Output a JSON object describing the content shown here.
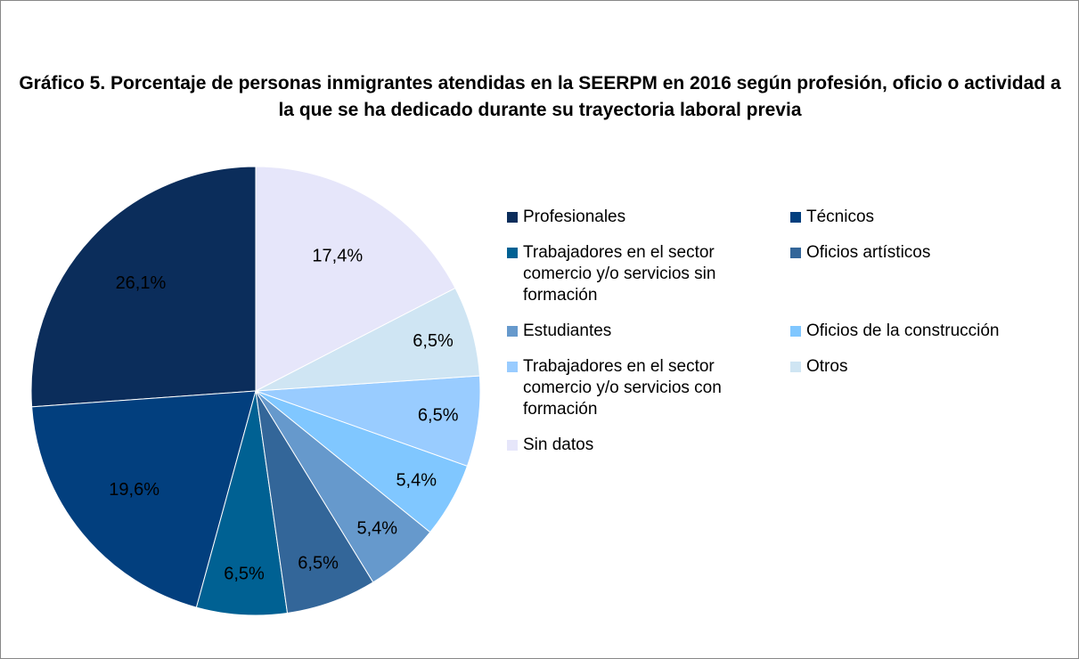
{
  "chart_data": {
    "type": "pie",
    "title": "Gráfico 5. Porcentaje de personas inmigrantes atendidas en la SEERPM en 2016 según profesión, oficio o actividad a la que se ha dedicado durante su trayectoria laboral previa",
    "categories": [
      "Profesionales",
      "Técnicos",
      "Trabajadores en el sector comercio y/o servicios sin formación",
      "Oficios artísticos",
      "Estudiantes",
      "Oficios de la construcción",
      "Trabajadores en el sector comercio y/o servicios con formación",
      "Otros",
      "Sin datos"
    ],
    "values": [
      26.1,
      19.6,
      6.5,
      6.5,
      5.4,
      5.4,
      6.5,
      6.5,
      17.4
    ],
    "value_labels": [
      "26,1%",
      "19,6%",
      "6,5%",
      "6,5%",
      "5,4%",
      "5,4%",
      "6,5%",
      "6,5%",
      "17,4%"
    ],
    "colors": [
      "#0b2d5b",
      "#023f7e",
      "#006193",
      "#336699",
      "#6699cc",
      "#80c7ff",
      "#99ccff",
      "#cfe5f3",
      "#e6e6fa"
    ],
    "direction": "counterclockwise"
  }
}
